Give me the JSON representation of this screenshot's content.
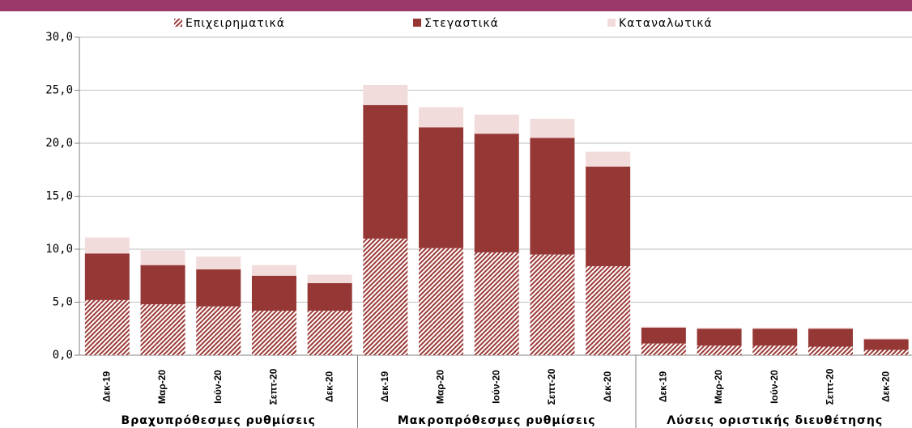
{
  "chart_data": {
    "type": "stacked_bar",
    "group_labels": [
      "Βραχυπρόθεσμες ρυθμίσεις",
      "Μακροπρόθεσμες ρυθμίσεις",
      "Λύσεις οριστικής διευθέτησης"
    ],
    "categories": [
      "Δεκ-19",
      "Μαρ-20",
      "Ιούν-20",
      "Σεπτ-20",
      "Δεκ-20",
      "Δεκ-19",
      "Μαρ-20",
      "Ιούν-20",
      "Σεπτ-20",
      "Δεκ-20",
      "Δεκ-19",
      "Μαρ-20",
      "Ιούν-20",
      "Σεπτ-20",
      "Δεκ-20"
    ],
    "series": [
      {
        "name": "Επιχειρηματικά",
        "color": "#9b3b39",
        "pattern": "hatch",
        "values": [
          5.2,
          4.8,
          4.6,
          4.2,
          4.2,
          11.0,
          10.1,
          9.7,
          9.5,
          8.4,
          1.1,
          0.9,
          0.9,
          0.8,
          0.5
        ]
      },
      {
        "name": "Στεγαστικά",
        "color": "#953735",
        "values": [
          4.4,
          3.7,
          3.5,
          3.3,
          2.6,
          12.6,
          11.4,
          11.2,
          11.0,
          9.4,
          1.5,
          1.6,
          1.6,
          1.7,
          1.0
        ]
      },
      {
        "name": "Καταναλωτικά",
        "color": "#f2dcdb",
        "values": [
          1.5,
          1.4,
          1.2,
          1.0,
          0.8,
          1.9,
          1.9,
          1.8,
          1.8,
          1.4,
          0.1,
          0.1,
          0.1,
          0.1,
          0.1
        ]
      }
    ],
    "ylim": [
      0,
      30
    ],
    "yticks": [
      {
        "value": 0,
        "label": "0,0"
      },
      {
        "value": 5,
        "label": "5,0"
      },
      {
        "value": 10,
        "label": "10,0"
      },
      {
        "value": 15,
        "label": "15,0"
      },
      {
        "value": 20,
        "label": "20,0"
      },
      {
        "value": 25,
        "label": "25,0"
      },
      {
        "value": 30,
        "label": "30,0"
      }
    ],
    "grid": true
  }
}
